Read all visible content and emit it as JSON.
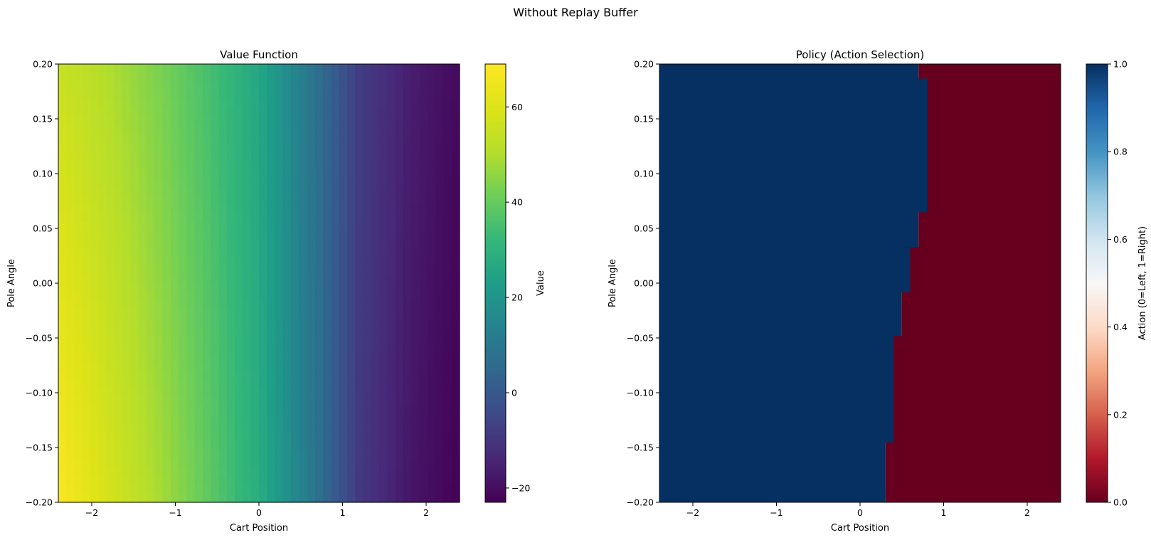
{
  "figure": {
    "title": "Without Replay Buffer"
  },
  "chart_data": [
    {
      "type": "heatmap",
      "title": "Value Function",
      "xlabel": "Cart Position",
      "ylabel": "Pole Angle",
      "xlim": [
        -2.4,
        2.4
      ],
      "ylim": [
        -0.2,
        0.2
      ],
      "xticks": [
        "−2",
        "−1",
        "0",
        "1",
        "2"
      ],
      "xtick_values": [
        -2,
        -1,
        0,
        1,
        2
      ],
      "yticks": [
        "−0.20",
        "−0.15",
        "−0.10",
        "−0.05",
        "0.00",
        "0.05",
        "0.10",
        "0.15",
        "0.20"
      ],
      "ytick_values": [
        -0.2,
        -0.15,
        -0.1,
        -0.05,
        0,
        0.05,
        0.1,
        0.15,
        0.2
      ],
      "colormap": "viridis",
      "colorbar": {
        "label": "Value",
        "range": [
          -23,
          69
        ],
        "ticks": [
          "−20",
          "0",
          "20",
          "40",
          "60"
        ],
        "tick_values": [
          -20,
          0,
          20,
          40,
          60
        ]
      },
      "value_profile_by_x": {
        "x": [
          -2.4,
          -1.8,
          -1.2,
          -0.6,
          0.0,
          0.6,
          1.2,
          1.8,
          2.4
        ],
        "top_row_value": [
          55,
          50,
          43,
          35,
          26,
          10,
          -8,
          -16,
          -21
        ],
        "bottom_row_value": [
          68,
          58,
          49,
          39,
          28,
          11,
          -9,
          -18,
          -23
        ]
      }
    },
    {
      "type": "heatmap",
      "title": "Policy (Action Selection)",
      "xlabel": "Cart Position",
      "ylabel": "Pole Angle",
      "xlim": [
        -2.4,
        2.4
      ],
      "ylim": [
        -0.2,
        0.2
      ],
      "xticks": [
        "−2",
        "−1",
        "0",
        "1",
        "2"
      ],
      "xtick_values": [
        -2,
        -1,
        0,
        1,
        2
      ],
      "yticks": [
        "−0.20",
        "−0.15",
        "−0.10",
        "−0.05",
        "0.00",
        "0.05",
        "0.10",
        "0.15",
        "0.20"
      ],
      "ytick_values": [
        -0.2,
        -0.15,
        -0.1,
        -0.05,
        0,
        0.05,
        0.1,
        0.15,
        0.2
      ],
      "colormap": "RdBu",
      "colorbar": {
        "label": "Action (0=Left, 1=Right)",
        "range": [
          0,
          1
        ],
        "ticks": [
          "0.0",
          "0.2",
          "0.4",
          "0.6",
          "0.8",
          "1.0"
        ],
        "tick_values": [
          0,
          0.2,
          0.4,
          0.6,
          0.8,
          1.0
        ]
      },
      "colors": {
        "action_1": "#053061",
        "action_0": "#67001f"
      },
      "decision_boundary": [
        {
          "angle_from": -0.2,
          "angle_to": -0.145,
          "cart_position": 0.3
        },
        {
          "angle_from": -0.145,
          "angle_to": -0.048,
          "cart_position": 0.4
        },
        {
          "angle_from": -0.048,
          "angle_to": -0.008,
          "cart_position": 0.5
        },
        {
          "angle_from": -0.008,
          "angle_to": 0.033,
          "cart_position": 0.6
        },
        {
          "angle_from": 0.033,
          "angle_to": 0.065,
          "cart_position": 0.7
        },
        {
          "angle_from": 0.065,
          "angle_to": 0.187,
          "cart_position": 0.8
        },
        {
          "angle_from": 0.187,
          "angle_to": 0.2,
          "cart_position": 0.7
        }
      ]
    }
  ]
}
